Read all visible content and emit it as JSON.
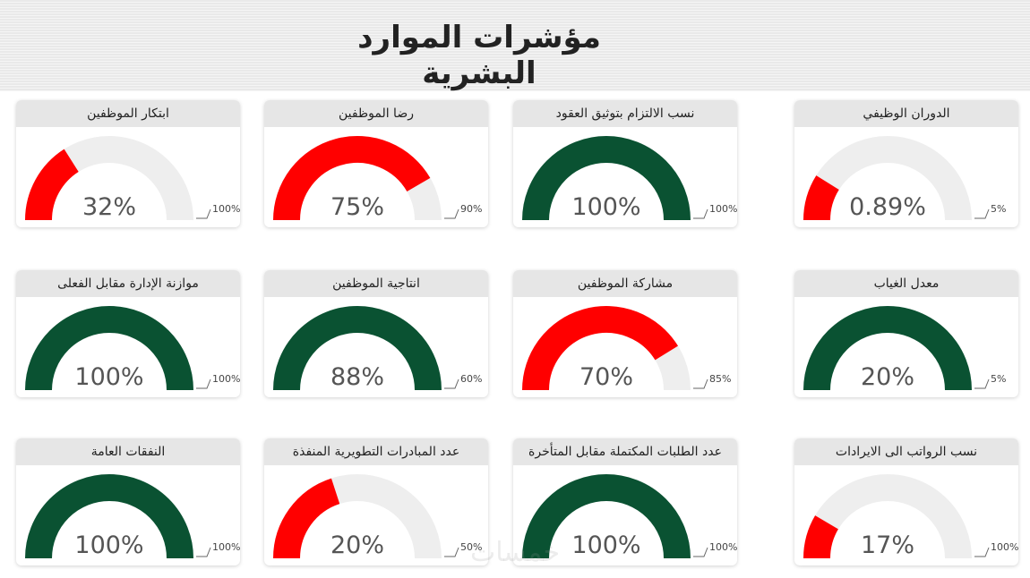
{
  "page": {
    "title": "مؤشرات الموارد البشرية",
    "watermark": "خمسات"
  },
  "colors": {
    "red": "#ff0000",
    "green": "#0a5232",
    "track": "#eeeeee",
    "text": "#555555"
  },
  "cards": [
    {
      "id": "turnover",
      "title": "الدوران الوظيفي",
      "value_label": "0.89%",
      "target_label": "5%",
      "fill": 0.178,
      "color": "red"
    },
    {
      "id": "contract-commitment",
      "title": "نسب الالتزام بتوثيق العقود",
      "value_label": "100%",
      "target_label": "100%",
      "fill": 1.0,
      "color": "green"
    },
    {
      "id": "employee-satisfaction",
      "title": "رضا الموظفين",
      "value_label": "75%",
      "target_label": "90%",
      "fill": 0.833,
      "color": "red"
    },
    {
      "id": "employee-innovation",
      "title": "ابتكار الموظفين",
      "value_label": "32%",
      "target_label": "100%",
      "fill": 0.32,
      "color": "red"
    },
    {
      "id": "absence-rate",
      "title": "معدل الغياب",
      "value_label": "20%",
      "target_label": "5%",
      "fill": 1.0,
      "color": "green"
    },
    {
      "id": "employee-participation",
      "title": "مشاركة الموظفين",
      "value_label": "70%",
      "target_label": "85%",
      "fill": 0.824,
      "color": "red"
    },
    {
      "id": "employee-productivity",
      "title": "انتاجية الموظفين",
      "value_label": "88%",
      "target_label": "60%",
      "fill": 1.0,
      "color": "green"
    },
    {
      "id": "budget-vs-actual",
      "title": "موازنة الإدارة مقابل الفعلى",
      "value_label": "100%",
      "target_label": "100%",
      "fill": 1.0,
      "color": "green"
    },
    {
      "id": "salaries-to-revenue",
      "title": "نسب الرواتب الى الايرادات",
      "value_label": "17%",
      "target_label": "100%",
      "fill": 0.17,
      "color": "red"
    },
    {
      "id": "completed-vs-late-requests",
      "title": "عدد الطلبات المكتملة مقابل المتأخرة",
      "value_label": "100%",
      "target_label": "100%",
      "fill": 1.0,
      "color": "green"
    },
    {
      "id": "development-initiatives",
      "title": "عدد المبادرات التطويرية المنفذة",
      "value_label": "20%",
      "target_label": "50%",
      "fill": 0.4,
      "color": "red"
    },
    {
      "id": "general-expenses",
      "title": "النفقات العامة",
      "value_label": "100%",
      "target_label": "100%",
      "fill": 1.0,
      "color": "green"
    }
  ]
}
